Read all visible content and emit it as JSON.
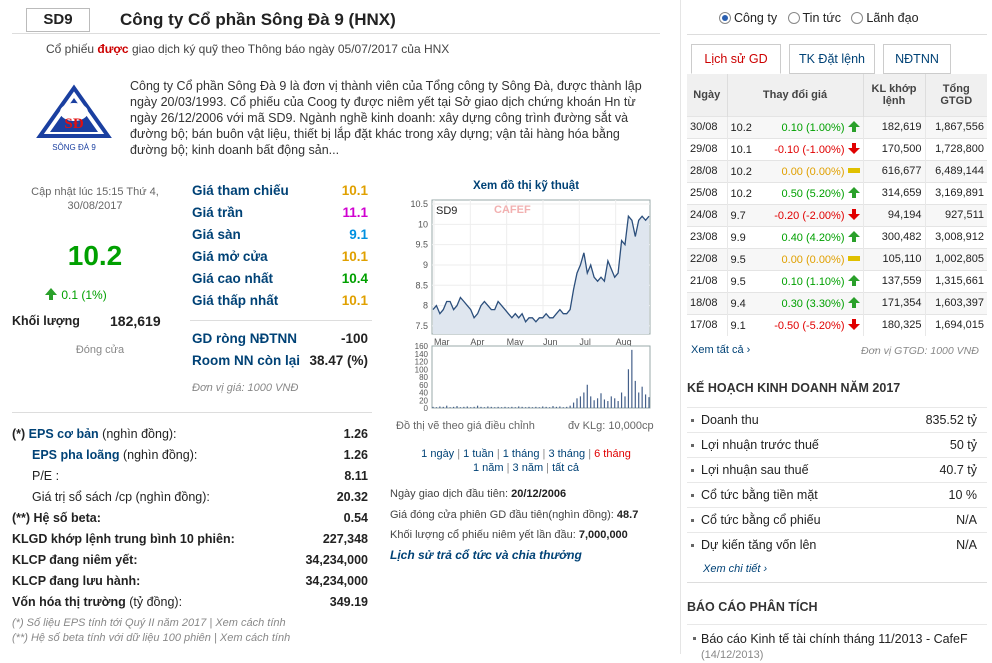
{
  "header": {
    "ticker": "SD9",
    "company": "Công ty Cổ phần Sông Đà 9 (HNX)"
  },
  "notice": {
    "pre": "Cổ phiếu ",
    "hl": "được",
    "post": " giao dịch ký quỹ theo Thông báo ngày 05/07/2017 của HNX"
  },
  "logo": {
    "text": "SÔNG ĐÀ 9"
  },
  "description": "Công ty Cổ phần Sông Đà 9 là đơn vị thành viên của Tổng công ty Sông Đà, được thành lập ngày 20/03/1993. Cổ phiếu của Coog ty được niêm yết tại Sở giao dịch chứng khoán Hn từ ngày 26/12/2006 với mã SD9. Ngành nghề kinh doanh: xây dựng công trình đường sắt và đường bộ; bán buôn vật liệu, thiết bị lắp đặt khác trong xây dựng; vận tải hàng hóa bằng đường bộ; kinh doanh bất động sản...",
  "quote": {
    "updated": "Cập nhật lúc 15:15 Thứ 4, 30/08/2017",
    "price": "10.2",
    "change": "0.1 (1%)",
    "volume_label": "Khối lượng",
    "volume": "182,619",
    "status": "Đóng cửa"
  },
  "prices": [
    {
      "label": "Giá tham chiếu",
      "value": "10.1",
      "color": "#e0a000"
    },
    {
      "label": "Giá trần",
      "value": "11.1",
      "color": "#d000d0"
    },
    {
      "label": "Giá sàn",
      "value": "9.1",
      "color": "#0090e0"
    },
    {
      "label": "Giá mở cửa",
      "value": "10.1",
      "color": "#e0a000"
    },
    {
      "label": "Giá cao nhất",
      "value": "10.4",
      "color": "#00a000"
    },
    {
      "label": "Giá thấp nhất",
      "value": "10.1",
      "color": "#e0a000"
    }
  ],
  "foreign": [
    {
      "label": "GD ròng NĐTNN",
      "value": "-100"
    },
    {
      "label": "Room NN còn lại",
      "value": "38.47 (%)"
    }
  ],
  "unit": "Đơn vị giá: 1000 VNĐ",
  "financials": [
    {
      "pre": "(*) ",
      "label": "EPS cơ bản",
      "suffix": " (nghìn đồng):",
      "value": "1.26",
      "blue": true
    },
    {
      "pre": "",
      "label": "EPS pha loãng",
      "suffix": " (nghìn đồng):",
      "value": "1.26",
      "blue": true
    },
    {
      "pre": "",
      "label": "P/E :",
      "suffix": "",
      "value": "8.11",
      "blue": false
    },
    {
      "pre": "",
      "label": "Giá trị sổ sách /cp",
      "suffix": " (nghìn đồng):",
      "value": "20.32",
      "blue": false
    },
    {
      "pre": "(**) ",
      "label": "Hệ số beta:",
      "suffix": "",
      "value": "0.54",
      "blue": false
    },
    {
      "pre": "",
      "label": "KLGD khớp lệnh trung bình 10 phiên:",
      "suffix": "",
      "value": "227,348",
      "blue": false
    },
    {
      "pre": "",
      "label": "KLCP đang niêm yết:",
      "suffix": "",
      "value": "34,234,000",
      "blue": false
    },
    {
      "pre": "",
      "label": "KLCP đang lưu hành:",
      "suffix": "",
      "value": "34,234,000",
      "blue": false
    },
    {
      "pre": "",
      "label": "Vốn hóa thị trường",
      "suffix": " (tỷ đồng):",
      "value": "349.19",
      "blue": false
    }
  ],
  "notes": [
    "(*) Số liệu EPS tính tới Quý II năm 2017 | Xem cách tính",
    "(**) Hệ số beta tính với dữ liệu 100 phiên | Xem cách tính"
  ],
  "chart": {
    "title": "Xem đồ thị kỹ thuật",
    "symbol": "SD9",
    "watermark": "CAFEF",
    "caption": "Đồ thị vẽ theo giá điều chỉnh",
    "vol_unit": "đv KLg: 10,000cp",
    "ranges1": [
      "1 ngày",
      "1 tuần",
      "1 tháng",
      "3 tháng",
      "6 tháng"
    ],
    "ranges2": [
      "1 năm",
      "3 năm",
      "tất cả"
    ],
    "active_range": "6 tháng"
  },
  "chart_data": {
    "type": "line",
    "x_ticks": [
      "Mar",
      "Apr",
      "May",
      "Jun",
      "Jul",
      "Aug"
    ],
    "y_ticks": [
      7.5,
      8,
      8.5,
      9,
      9.5,
      10,
      10.5
    ],
    "ylim": [
      7.3,
      10.6
    ],
    "price_series": [
      7.9,
      8.0,
      7.8,
      7.9,
      8.1,
      8.1,
      7.9,
      8.0,
      8.2,
      8.1,
      8.0,
      7.9,
      7.7,
      7.8,
      8.0,
      8.1,
      8.0,
      7.9,
      7.9,
      8.1,
      8.0,
      7.9,
      7.8,
      7.7,
      7.8,
      7.7,
      7.8,
      7.6,
      7.7,
      7.7,
      7.6,
      7.7,
      7.7,
      7.8,
      7.7,
      7.7,
      7.8,
      7.9,
      7.8,
      7.8,
      7.9,
      8.4,
      8.8,
      9.0,
      9.3,
      8.8,
      9.0,
      8.7,
      8.6,
      8.7,
      8.6,
      9.1,
      8.9,
      8.7,
      8.8,
      9.6,
      9.5,
      10.2,
      10.1,
      9.7,
      10.1,
      10.2,
      10.1,
      10.2
    ],
    "vol_ticks": [
      0,
      20,
      40,
      60,
      80,
      100,
      120,
      140,
      160
    ],
    "volume_series": [
      3,
      2,
      4,
      3,
      6,
      2,
      3,
      5,
      2,
      3,
      4,
      2,
      3,
      6,
      3,
      2,
      4,
      3,
      2,
      3,
      2,
      3,
      2,
      3,
      2,
      4,
      3,
      2,
      3,
      2,
      3,
      2,
      4,
      3,
      2,
      5,
      3,
      4,
      2,
      3,
      6,
      14,
      25,
      30,
      40,
      60,
      30,
      20,
      25,
      38,
      22,
      18,
      30,
      25,
      18,
      40,
      30,
      100,
      150,
      70,
      40,
      55,
      35,
      28
    ]
  },
  "first_trade": {
    "l1": "Ngày giao dịch đầu tiên: ",
    "v1": "20/12/2006",
    "l2": "Giá đóng cửa phiên GD đầu tiên(nghìn đồng): ",
    "v2": "48.7",
    "l3": "Khối lượng cổ phiếu niêm yết lần đầu: ",
    "v3": "7,000,000",
    "link": "Lịch sử trả cổ tức và chia thưởng"
  },
  "search": {
    "options": [
      "Công ty",
      "Tin tức",
      "Lãnh đạo"
    ]
  },
  "tabs": [
    "Lịch sử GD",
    "TK Đặt lệnh",
    "NĐTNN"
  ],
  "history": {
    "headers": [
      "Ngày",
      "Thay đổi giá",
      "KL khớp lệnh",
      "Tổng GTGD"
    ],
    "rows": [
      {
        "d": "30/08",
        "p": "10.2",
        "c": "0.10 (1.00%)",
        "t": "up",
        "v": "182,619",
        "g": "1,867,556"
      },
      {
        "d": "29/08",
        "p": "10.1",
        "c": "-0.10 (-1.00%)",
        "t": "dn",
        "v": "170,500",
        "g": "1,728,800"
      },
      {
        "d": "28/08",
        "p": "10.2",
        "c": "0.00 (0.00%)",
        "t": "eq",
        "v": "616,677",
        "g": "6,489,144"
      },
      {
        "d": "25/08",
        "p": "10.2",
        "c": "0.50 (5.20%)",
        "t": "up",
        "v": "314,659",
        "g": "3,169,891"
      },
      {
        "d": "24/08",
        "p": "9.7",
        "c": "-0.20 (-2.00%)",
        "t": "dn",
        "v": "94,194",
        "g": "927,511"
      },
      {
        "d": "23/08",
        "p": "9.9",
        "c": "0.40 (4.20%)",
        "t": "up",
        "v": "300,482",
        "g": "3,008,912"
      },
      {
        "d": "22/08",
        "p": "9.5",
        "c": "0.00 (0.00%)",
        "t": "eq",
        "v": "105,110",
        "g": "1,002,805"
      },
      {
        "d": "21/08",
        "p": "9.5",
        "c": "0.10 (1.10%)",
        "t": "up",
        "v": "137,559",
        "g": "1,315,661"
      },
      {
        "d": "18/08",
        "p": "9.4",
        "c": "0.30 (3.30%)",
        "t": "up",
        "v": "171,354",
        "g": "1,603,397"
      },
      {
        "d": "17/08",
        "p": "9.1",
        "c": "-0.50 (-5.20%)",
        "t": "dn",
        "v": "180,325",
        "g": "1,694,015"
      }
    ],
    "see_all": "Xem tất cả",
    "unit": "Đơn vị GTGD: 1000 VNĐ"
  },
  "plan": {
    "title": "KẾ HOẠCH KINH DOANH NĂM 2017",
    "items": [
      {
        "l": "Doanh thu",
        "v": "835.52 tỷ"
      },
      {
        "l": "Lợi nhuận trước thuế",
        "v": "50 tỷ"
      },
      {
        "l": "Lợi nhuận sau thuế",
        "v": "40.7 tỷ"
      },
      {
        "l": "Cổ tức bằng tiền mặt",
        "v": "10 %"
      },
      {
        "l": "Cổ tức bằng cổ phiếu",
        "v": "N/A"
      },
      {
        "l": "Dự kiến tăng vốn lên",
        "v": "N/A"
      }
    ],
    "more": "Xem chi tiết"
  },
  "reports": {
    "title": "BÁO CÁO PHÂN TÍCH",
    "item": "Báo cáo Kinh tế tài chính tháng 11/2013 - CafeF",
    "date": "(14/12/2013)"
  },
  "colors": {
    "up": "#00a000",
    "down": "#e00000",
    "flat": "#e0a000",
    "link": "#004276"
  }
}
